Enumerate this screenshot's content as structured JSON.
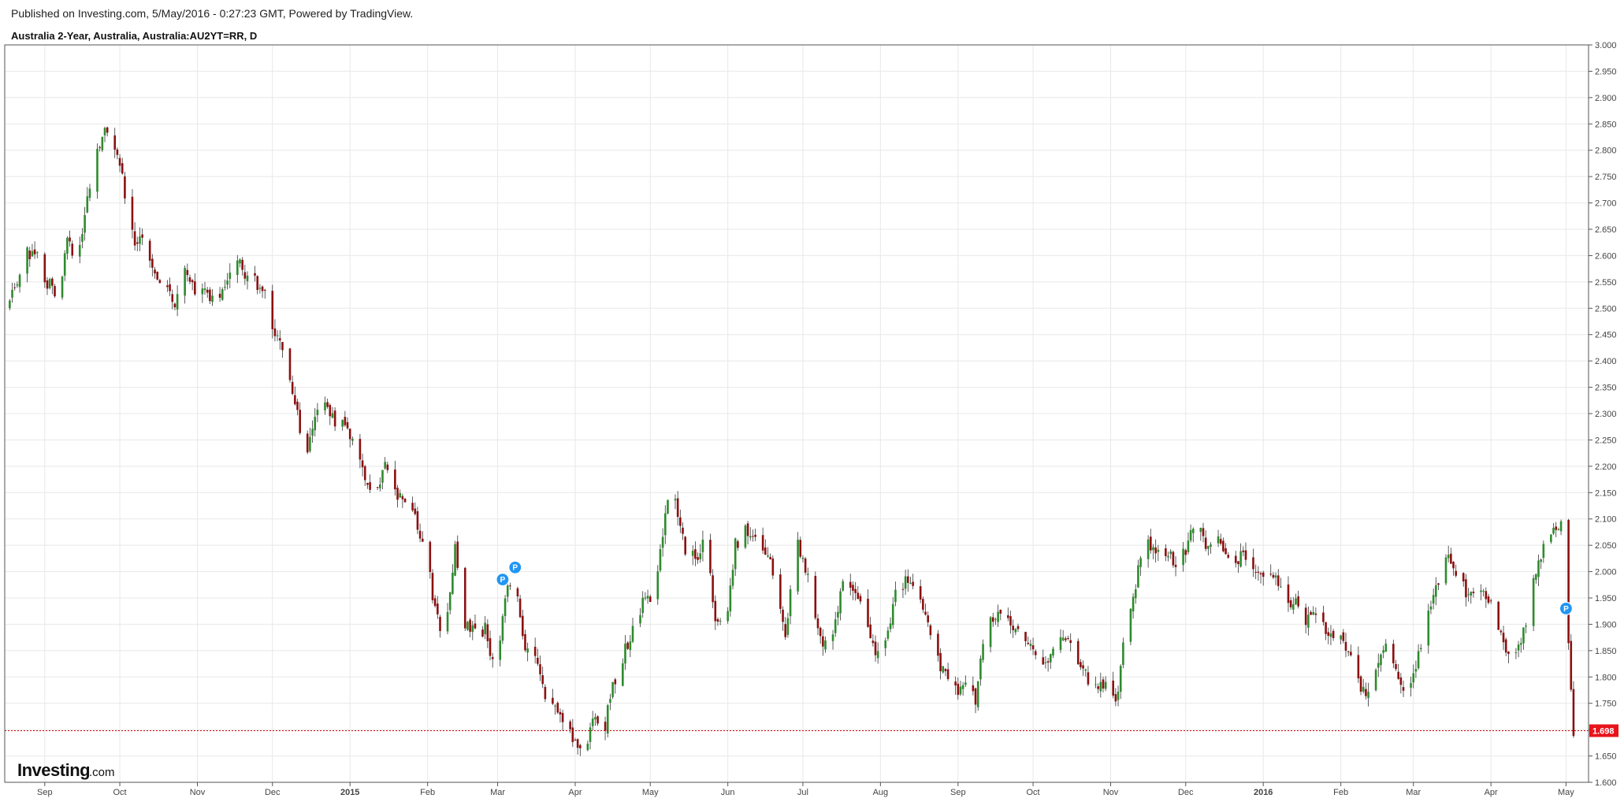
{
  "header": {
    "published": "Published on Investing.com, 5/May/2016 - 0:27:23 GMT, Powered by TradingView.",
    "symbol": "Australia 2-Year, Australia, Australia:AU2YT=RR, D"
  },
  "logo": {
    "main": "Investing",
    "sub": ".com"
  },
  "colors": {
    "up": "#2e8b2e",
    "down": "#8b1010",
    "grid": "#e8e8e8",
    "axis": "#555555",
    "price_line": "#cc0000",
    "price_box": "#e8141b",
    "marker": "#2196f3"
  },
  "chart_data": {
    "type": "candlestick",
    "title": "Australia 2-Year, Australia, Australia:AU2YT=RR, D",
    "interval": "D",
    "y_ticks": [
      "1.600",
      "1.650",
      "1.700",
      "1.750",
      "1.800",
      "1.850",
      "1.900",
      "1.950",
      "2.000",
      "2.050",
      "2.100",
      "2.150",
      "2.200",
      "2.250",
      "2.300",
      "2.350",
      "2.400",
      "2.450",
      "2.500",
      "2.550",
      "2.600",
      "2.650",
      "2.700",
      "2.750",
      "2.800",
      "2.850",
      "2.900",
      "2.950",
      "3.000"
    ],
    "ylim": [
      1.6,
      3.0
    ],
    "x_ticks": [
      {
        "label": "Sep",
        "date": "2014-09-01"
      },
      {
        "label": "Oct",
        "date": "2014-10-01"
      },
      {
        "label": "Nov",
        "date": "2014-11-01"
      },
      {
        "label": "Dec",
        "date": "2014-12-01"
      },
      {
        "label": "2015",
        "date": "2015-01-01",
        "bold": true
      },
      {
        "label": "Feb",
        "date": "2015-02-01"
      },
      {
        "label": "Mar",
        "date": "2015-03-01"
      },
      {
        "label": "Apr",
        "date": "2015-04-01"
      },
      {
        "label": "May",
        "date": "2015-05-01"
      },
      {
        "label": "Jun",
        "date": "2015-06-01"
      },
      {
        "label": "Jul",
        "date": "2015-07-01"
      },
      {
        "label": "Aug",
        "date": "2015-08-01"
      },
      {
        "label": "Sep",
        "date": "2015-09-01"
      },
      {
        "label": "Oct",
        "date": "2015-10-01"
      },
      {
        "label": "Nov",
        "date": "2015-11-01"
      },
      {
        "label": "Dec",
        "date": "2015-12-01"
      },
      {
        "label": "2016",
        "date": "2016-01-01",
        "bold": true
      },
      {
        "label": "Feb",
        "date": "2016-02-01"
      },
      {
        "label": "Mar",
        "date": "2016-03-01"
      },
      {
        "label": "Apr",
        "date": "2016-04-01"
      },
      {
        "label": "May",
        "date": "2016-05-01"
      }
    ],
    "xlim": [
      "2014-08-16",
      "2016-05-10"
    ],
    "last_price": {
      "value": 1.698,
      "label": "1.698"
    },
    "markers": [
      {
        "label": "P",
        "date": "2015-03-03",
        "value": 1.985
      },
      {
        "label": "P",
        "date": "2015-03-08",
        "value": 2.008
      },
      {
        "label": "P",
        "date": "2016-05-01",
        "value": 1.93
      }
    ],
    "close_path": [
      [
        "2014-08-16",
        2.5
      ],
      [
        "2014-08-20",
        2.54
      ],
      [
        "2014-08-24",
        2.6
      ],
      [
        "2014-08-28",
        2.61
      ],
      [
        "2014-09-02",
        2.55
      ],
      [
        "2014-09-06",
        2.53
      ],
      [
        "2014-09-10",
        2.62
      ],
      [
        "2014-09-14",
        2.6
      ],
      [
        "2014-09-18",
        2.7
      ],
      [
        "2014-09-22",
        2.8
      ],
      [
        "2014-09-26",
        2.84
      ],
      [
        "2014-09-30",
        2.8
      ],
      [
        "2014-10-03",
        2.72
      ],
      [
        "2014-10-07",
        2.63
      ],
      [
        "2014-10-11",
        2.62
      ],
      [
        "2014-10-15",
        2.56
      ],
      [
        "2014-10-19",
        2.56
      ],
      [
        "2014-10-23",
        2.51
      ],
      [
        "2014-10-27",
        2.58
      ],
      [
        "2014-10-31",
        2.54
      ],
      [
        "2014-11-04",
        2.55
      ],
      [
        "2014-11-08",
        2.5
      ],
      [
        "2014-11-12",
        2.54
      ],
      [
        "2014-11-16",
        2.59
      ],
      [
        "2014-11-20",
        2.57
      ],
      [
        "2014-11-24",
        2.55
      ],
      [
        "2014-11-28",
        2.52
      ],
      [
        "2014-12-02",
        2.45
      ],
      [
        "2014-12-06",
        2.4
      ],
      [
        "2014-12-10",
        2.32
      ],
      [
        "2014-12-14",
        2.22
      ],
      [
        "2014-12-18",
        2.3
      ],
      [
        "2014-12-22",
        2.31
      ],
      [
        "2014-12-26",
        2.28
      ],
      [
        "2014-12-30",
        2.29
      ],
      [
        "2015-01-03",
        2.22
      ],
      [
        "2015-01-07",
        2.18
      ],
      [
        "2015-01-11",
        2.14
      ],
      [
        "2015-01-15",
        2.2
      ],
      [
        "2015-01-19",
        2.15
      ],
      [
        "2015-01-23",
        2.12
      ],
      [
        "2015-01-27",
        2.1
      ],
      [
        "2015-01-31",
        2.05
      ],
      [
        "2015-02-04",
        1.92
      ],
      [
        "2015-02-08",
        1.88
      ],
      [
        "2015-02-12",
        2.05
      ],
      [
        "2015-02-16",
        1.9
      ],
      [
        "2015-02-20",
        1.88
      ],
      [
        "2015-02-24",
        1.89
      ],
      [
        "2015-02-28",
        1.8
      ],
      [
        "2015-03-04",
        1.95
      ],
      [
        "2015-03-08",
        1.99
      ],
      [
        "2015-03-12",
        1.86
      ],
      [
        "2015-03-16",
        1.84
      ],
      [
        "2015-03-20",
        1.76
      ],
      [
        "2015-03-24",
        1.75
      ],
      [
        "2015-03-28",
        1.72
      ],
      [
        "2015-04-01",
        1.68
      ],
      [
        "2015-04-05",
        1.66
      ],
      [
        "2015-04-09",
        1.73
      ],
      [
        "2015-04-13",
        1.71
      ],
      [
        "2015-04-17",
        1.8
      ],
      [
        "2015-04-21",
        1.85
      ],
      [
        "2015-04-25",
        1.9
      ],
      [
        "2015-04-29",
        1.96
      ],
      [
        "2015-05-03",
        1.95
      ],
      [
        "2015-05-07",
        2.12
      ],
      [
        "2015-05-11",
        2.14
      ],
      [
        "2015-05-15",
        2.04
      ],
      [
        "2015-05-19",
        2.02
      ],
      [
        "2015-05-23",
        2.06
      ],
      [
        "2015-05-27",
        1.92
      ],
      [
        "2015-05-31",
        1.87
      ],
      [
        "2015-06-04",
        2.05
      ],
      [
        "2015-06-08",
        2.09
      ],
      [
        "2015-06-12",
        2.06
      ],
      [
        "2015-06-16",
        2.04
      ],
      [
        "2015-06-20",
        1.98
      ],
      [
        "2015-06-24",
        1.87
      ],
      [
        "2015-06-28",
        2.07
      ],
      [
        "2015-07-02",
        2.01
      ],
      [
        "2015-07-06",
        1.9
      ],
      [
        "2015-07-10",
        1.86
      ],
      [
        "2015-07-14",
        1.9
      ],
      [
        "2015-07-18",
        2.0
      ],
      [
        "2015-07-22",
        1.96
      ],
      [
        "2015-07-26",
        1.9
      ],
      [
        "2015-07-30",
        1.85
      ],
      [
        "2015-08-03",
        1.86
      ],
      [
        "2015-08-07",
        1.97
      ],
      [
        "2015-08-11",
        1.98
      ],
      [
        "2015-08-15",
        1.99
      ],
      [
        "2015-08-19",
        1.92
      ],
      [
        "2015-08-23",
        1.84
      ],
      [
        "2015-08-27",
        1.8
      ],
      [
        "2015-08-31",
        1.77
      ],
      [
        "2015-09-04",
        1.79
      ],
      [
        "2015-09-08",
        1.76
      ],
      [
        "2015-09-12",
        1.9
      ],
      [
        "2015-09-16",
        1.92
      ],
      [
        "2015-09-20",
        1.9
      ],
      [
        "2015-09-24",
        1.89
      ],
      [
        "2015-09-28",
        1.87
      ],
      [
        "2015-10-02",
        1.84
      ],
      [
        "2015-10-06",
        1.82
      ],
      [
        "2015-10-10",
        1.87
      ],
      [
        "2015-10-14",
        1.88
      ],
      [
        "2015-10-18",
        1.82
      ],
      [
        "2015-10-22",
        1.8
      ],
      [
        "2015-10-26",
        1.78
      ],
      [
        "2015-10-30",
        1.79
      ],
      [
        "2015-11-03",
        1.74
      ],
      [
        "2015-11-07",
        1.9
      ],
      [
        "2015-11-11",
        1.98
      ],
      [
        "2015-11-15",
        2.06
      ],
      [
        "2015-11-19",
        2.04
      ],
      [
        "2015-11-23",
        2.03
      ],
      [
        "2015-11-27",
        2.02
      ],
      [
        "2015-12-01",
        2.04
      ],
      [
        "2015-12-05",
        2.1
      ],
      [
        "2015-12-09",
        2.05
      ],
      [
        "2015-12-13",
        2.08
      ],
      [
        "2015-12-17",
        2.02
      ],
      [
        "2015-12-21",
        2.03
      ],
      [
        "2015-12-25",
        2.02
      ],
      [
        "2015-12-29",
        2.01
      ],
      [
        "2016-01-02",
        2.0
      ],
      [
        "2016-01-06",
        1.99
      ],
      [
        "2016-01-10",
        1.95
      ],
      [
        "2016-01-14",
        1.94
      ],
      [
        "2016-01-18",
        1.9
      ],
      [
        "2016-01-22",
        1.93
      ],
      [
        "2016-01-26",
        1.89
      ],
      [
        "2016-01-30",
        1.88
      ],
      [
        "2016-02-03",
        1.86
      ],
      [
        "2016-02-07",
        1.8
      ],
      [
        "2016-02-11",
        1.76
      ],
      [
        "2016-02-15",
        1.82
      ],
      [
        "2016-02-19",
        1.85
      ],
      [
        "2016-02-23",
        1.8
      ],
      [
        "2016-02-27",
        1.76
      ],
      [
        "2016-03-02",
        1.82
      ],
      [
        "2016-03-06",
        1.9
      ],
      [
        "2016-03-10",
        1.97
      ],
      [
        "2016-03-14",
        2.04
      ],
      [
        "2016-03-18",
        2.0
      ],
      [
        "2016-03-22",
        1.96
      ],
      [
        "2016-03-26",
        1.97
      ],
      [
        "2016-03-30",
        1.96
      ],
      [
        "2016-04-03",
        1.9
      ],
      [
        "2016-04-07",
        1.86
      ],
      [
        "2016-04-11",
        1.85
      ],
      [
        "2016-04-15",
        1.9
      ],
      [
        "2016-04-19",
        2.01
      ],
      [
        "2016-04-23",
        2.05
      ],
      [
        "2016-04-27",
        2.09
      ],
      [
        "2016-04-29",
        2.1
      ],
      [
        "2016-05-01",
        1.93
      ],
      [
        "2016-05-02",
        1.87
      ],
      [
        "2016-05-03",
        1.77
      ],
      [
        "2016-05-04",
        1.698
      ]
    ]
  }
}
